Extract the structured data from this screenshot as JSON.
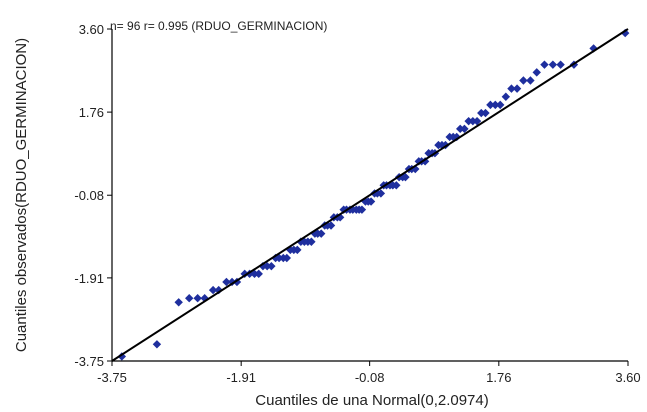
{
  "chart_data": {
    "type": "scatter",
    "title": "",
    "annotation": "n= 96 r= 0.995 (RDUO_GERMINACION)",
    "xlabel": "Cuantiles de una Normal(0,2.0974)",
    "ylabel": "Cuantiles observados(RDUO_GERMINACION)",
    "xlim": [
      -3.75,
      3.6
    ],
    "ylim": [
      -3.75,
      3.6
    ],
    "xticks": [
      -3.75,
      -1.91,
      -0.08,
      1.76,
      3.6
    ],
    "yticks": [
      -3.75,
      -1.91,
      -0.08,
      1.76,
      3.6
    ],
    "xtick_labels": [
      "-3.75",
      "-1.91",
      "-0.08",
      "1.76",
      "3.60"
    ],
    "ytick_labels": [
      "-3.75",
      "-1.91",
      "-0.08",
      "1.76",
      "3.60"
    ],
    "grid": false,
    "reference_line": {
      "x": [
        -3.75,
        3.6
      ],
      "y": [
        -3.75,
        3.6
      ]
    },
    "colors": {
      "points": "#1f2f9e",
      "line": "#000000",
      "axis": "#000000"
    },
    "series": [
      {
        "points": [
          [
            -3.61,
            -3.65
          ],
          [
            -3.11,
            -3.38
          ],
          [
            -2.8,
            -2.45
          ],
          [
            -2.65,
            -2.36
          ],
          [
            -2.53,
            -2.36
          ],
          [
            -2.43,
            -2.36
          ],
          [
            -2.31,
            -2.18
          ],
          [
            -2.23,
            -2.18
          ],
          [
            -2.12,
            -2.0
          ],
          [
            -2.04,
            -2.0
          ],
          [
            -1.97,
            -2.0
          ],
          [
            -1.86,
            -1.82
          ],
          [
            -1.79,
            -1.82
          ],
          [
            -1.72,
            -1.82
          ],
          [
            -1.66,
            -1.82
          ],
          [
            -1.6,
            -1.65
          ],
          [
            -1.54,
            -1.65
          ],
          [
            -1.48,
            -1.65
          ],
          [
            -1.42,
            -1.47
          ],
          [
            -1.37,
            -1.47
          ],
          [
            -1.31,
            -1.47
          ],
          [
            -1.26,
            -1.47
          ],
          [
            -1.21,
            -1.29
          ],
          [
            -1.16,
            -1.29
          ],
          [
            -1.11,
            -1.29
          ],
          [
            -1.06,
            -1.11
          ],
          [
            -1.01,
            -1.11
          ],
          [
            -0.96,
            -1.11
          ],
          [
            -0.91,
            -1.11
          ],
          [
            -0.86,
            -0.93
          ],
          [
            -0.82,
            -0.93
          ],
          [
            -0.77,
            -0.93
          ],
          [
            -0.72,
            -0.75
          ],
          [
            -0.68,
            -0.75
          ],
          [
            -0.63,
            -0.75
          ],
          [
            -0.59,
            -0.57
          ],
          [
            -0.54,
            -0.57
          ],
          [
            -0.5,
            -0.57
          ],
          [
            -0.45,
            -0.4
          ],
          [
            -0.41,
            -0.4
          ],
          [
            -0.36,
            -0.4
          ],
          [
            -0.32,
            -0.4
          ],
          [
            -0.27,
            -0.4
          ],
          [
            -0.23,
            -0.4
          ],
          [
            -0.19,
            -0.4
          ],
          [
            -0.14,
            -0.22
          ],
          [
            -0.1,
            -0.22
          ],
          [
            -0.06,
            -0.22
          ],
          [
            -0.01,
            -0.04
          ],
          [
            0.03,
            -0.04
          ],
          [
            0.08,
            -0.04
          ],
          [
            0.12,
            0.14
          ],
          [
            0.16,
            0.14
          ],
          [
            0.21,
            0.14
          ],
          [
            0.25,
            0.14
          ],
          [
            0.3,
            0.14
          ],
          [
            0.34,
            0.32
          ],
          [
            0.39,
            0.32
          ],
          [
            0.43,
            0.32
          ],
          [
            0.48,
            0.5
          ],
          [
            0.52,
            0.5
          ],
          [
            0.57,
            0.5
          ],
          [
            0.62,
            0.67
          ],
          [
            0.66,
            0.67
          ],
          [
            0.71,
            0.67
          ],
          [
            0.76,
            0.85
          ],
          [
            0.81,
            0.85
          ],
          [
            0.85,
            0.85
          ],
          [
            0.9,
            1.03
          ],
          [
            0.95,
            1.03
          ],
          [
            1.0,
            1.03
          ],
          [
            1.06,
            1.21
          ],
          [
            1.11,
            1.21
          ],
          [
            1.16,
            1.21
          ],
          [
            1.21,
            1.39
          ],
          [
            1.27,
            1.39
          ],
          [
            1.33,
            1.56
          ],
          [
            1.39,
            1.56
          ],
          [
            1.45,
            1.56
          ],
          [
            1.51,
            1.74
          ],
          [
            1.57,
            1.74
          ],
          [
            1.64,
            1.92
          ],
          [
            1.71,
            1.92
          ],
          [
            1.78,
            1.92
          ],
          [
            1.86,
            2.1
          ],
          [
            1.94,
            2.28
          ],
          [
            2.02,
            2.28
          ],
          [
            2.11,
            2.46
          ],
          [
            2.21,
            2.46
          ],
          [
            2.3,
            2.64
          ],
          [
            2.41,
            2.81
          ],
          [
            2.53,
            2.81
          ],
          [
            2.64,
            2.81
          ],
          [
            2.83,
            2.81
          ],
          [
            3.11,
            3.17
          ],
          [
            3.56,
            3.51
          ]
        ]
      }
    ]
  }
}
